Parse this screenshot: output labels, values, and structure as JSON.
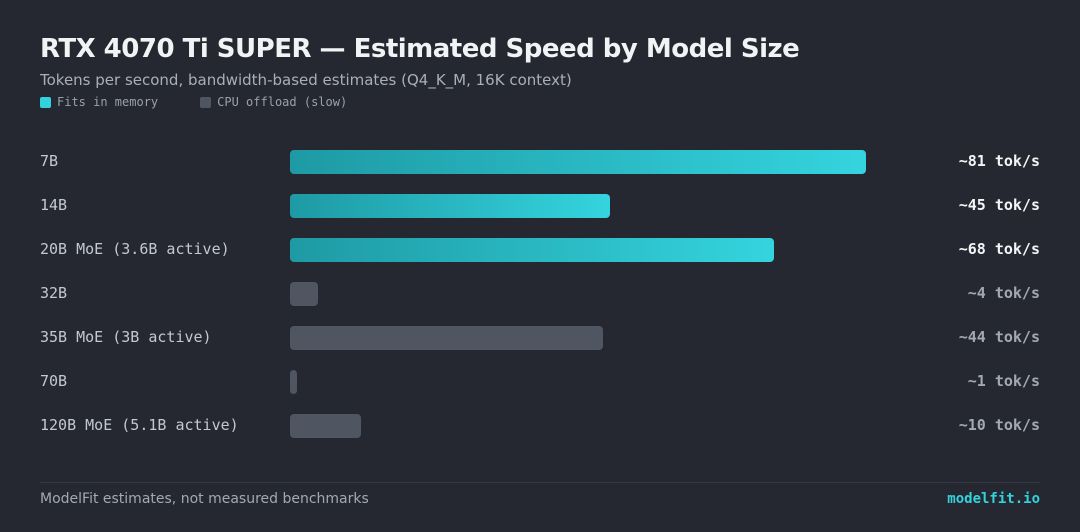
{
  "header": {
    "title": "RTX 4070 Ti SUPER — Estimated Speed by Model Size",
    "subtitle": "Tokens per second, bandwidth-based estimates (Q4_K_M, 16K context)"
  },
  "legend": {
    "fit_label": "Fits in memory",
    "offload_label": "CPU offload (slow)"
  },
  "colors": {
    "fit": "#33d3dd",
    "offload": "#4f5662",
    "background": "#252830"
  },
  "chart_data": {
    "type": "bar",
    "orientation": "horizontal",
    "title": "RTX 4070 Ti SUPER — Estimated Speed by Model Size",
    "subtitle": "Tokens per second, bandwidth-based estimates (Q4_K_M, 16K context)",
    "xlim": [
      0,
      81
    ],
    "categories": [
      "7B",
      "14B",
      "20B MoE (3.6B active)",
      "32B",
      "35B MoE (3B active)",
      "70B",
      "120B MoE (5.1B active)"
    ],
    "values": [
      81,
      45,
      68,
      4,
      44,
      1,
      10
    ],
    "value_labels": [
      "~81 tok/s",
      "~45 tok/s",
      "~68 tok/s",
      "~4 tok/s",
      "~44 tok/s",
      "~1 tok/s",
      "~10 tok/s"
    ],
    "status": [
      "fit",
      "fit",
      "fit",
      "offload",
      "offload",
      "offload",
      "offload"
    ]
  },
  "footer": {
    "note": "ModelFit estimates, not measured benchmarks",
    "brand": "modelfit.io"
  }
}
